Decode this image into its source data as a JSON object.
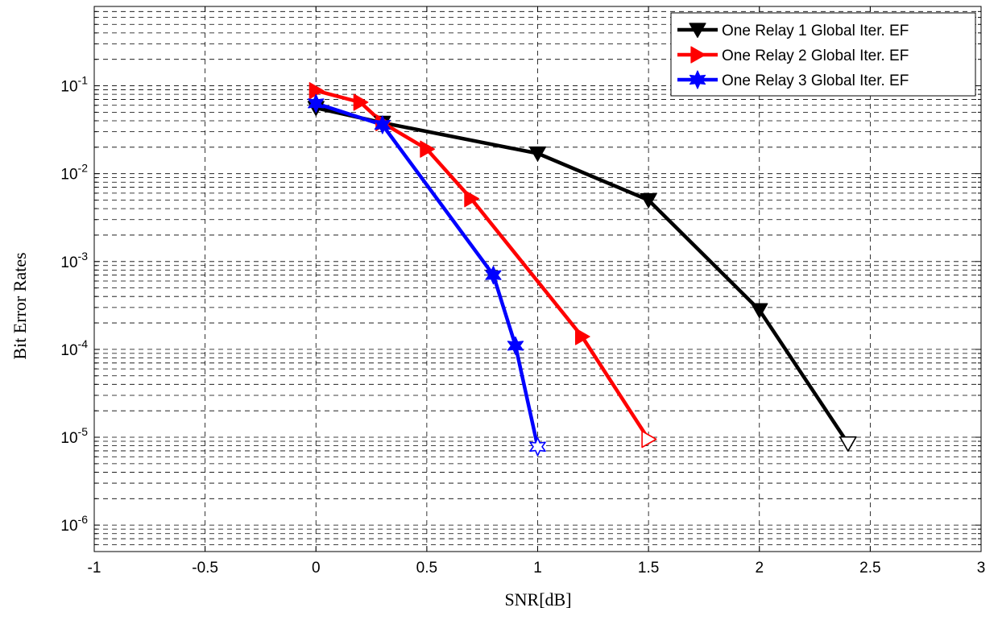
{
  "chart_data": {
    "type": "line",
    "xlabel": "SNR[dB]",
    "ylabel": "Bit Error Rates",
    "xlim": [
      -1,
      3
    ],
    "ylim": [
      5e-07,
      0.8
    ],
    "yscale": "log",
    "grid": true,
    "minor_grid": true,
    "legend_position": "top-right",
    "x_ticks": [
      -1,
      -0.5,
      0,
      0.5,
      1,
      1.5,
      2,
      2.5,
      3
    ],
    "x_tick_labels": [
      "-1",
      "-0.5",
      "0",
      "0.5",
      "1",
      "1.5",
      "2",
      "2.5",
      "3"
    ],
    "y_ticks": [
      {
        "value": 0.1,
        "mantissa": "10",
        "exponent": "-1"
      },
      {
        "value": 0.01,
        "mantissa": "10",
        "exponent": "-2"
      },
      {
        "value": 0.001,
        "mantissa": "10",
        "exponent": "-3"
      },
      {
        "value": 0.0001,
        "mantissa": "10",
        "exponent": "-4"
      },
      {
        "value": 1e-05,
        "mantissa": "10",
        "exponent": "-5"
      },
      {
        "value": 1e-06,
        "mantissa": "10",
        "exponent": "-6"
      }
    ],
    "series": [
      {
        "name": "One Relay 1 Global Iter. EF",
        "color": "#000000",
        "marker": "triangle-down",
        "x": [
          0,
          0.3,
          1,
          1.5,
          2,
          2.4
        ],
        "y": [
          0.056,
          0.038,
          0.017,
          0.005,
          0.00028,
          8.5e-06
        ]
      },
      {
        "name": "One Relay 2 Global Iter. EF",
        "color": "#ff0000",
        "marker": "triangle-right",
        "x": [
          0,
          0.2,
          0.3,
          0.5,
          0.7,
          1.2,
          1.5
        ],
        "y": [
          0.088,
          0.065,
          0.038,
          0.019,
          0.0052,
          0.00014,
          9.5e-06
        ]
      },
      {
        "name": "One Relay 3 Global Iter. EF",
        "color": "#0000ff",
        "marker": "hexagram",
        "x": [
          0,
          0.3,
          0.8,
          0.9,
          1
        ],
        "y": [
          0.063,
          0.036,
          0.0007,
          0.00011,
          7.8e-06
        ]
      }
    ]
  }
}
